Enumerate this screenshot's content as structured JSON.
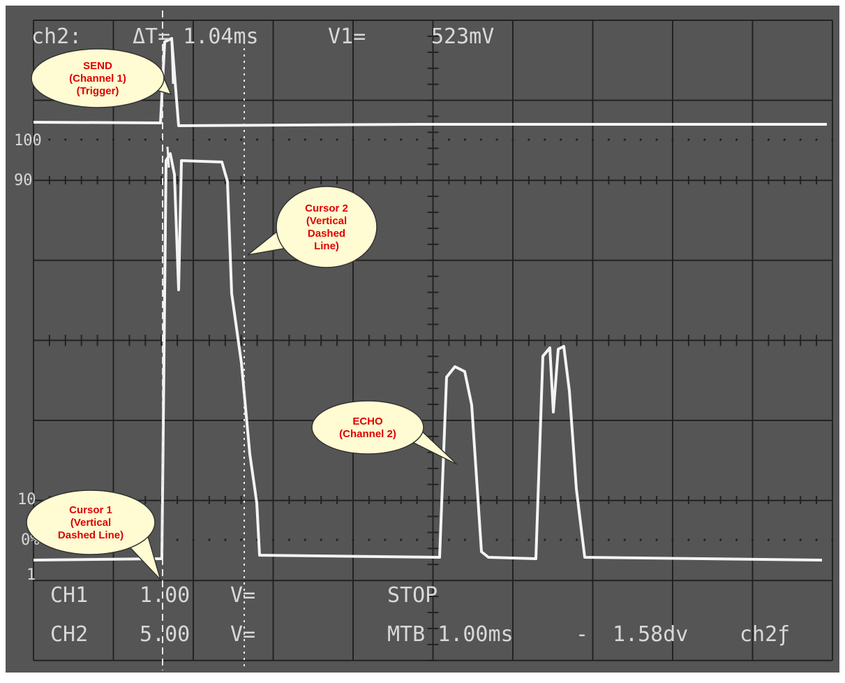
{
  "readout": {
    "channel": "ch2:",
    "delta_t": "ΔT= 1.04ms",
    "v1_label": "V1=",
    "v1": "523mV"
  },
  "scale_labels": [
    "100",
    "90",
    "10",
    "0%",
    "1"
  ],
  "status": {
    "ch1": {
      "name": "CH1",
      "volts": "1.00",
      "coupling": "V="
    },
    "ch2": {
      "name": "CH2",
      "volts": "5.00",
      "coupling": "V="
    },
    "state": "STOP",
    "timebase": "MTB 1.00ms",
    "dash": "-",
    "delay": "1.58dv",
    "trigger": "ch2ƒ"
  },
  "callouts": [
    {
      "lines": [
        "SEND",
        "(Channel 1)",
        "(Trigger)"
      ]
    },
    {
      "lines": [
        "Cursor 2",
        "(Vertical",
        "Dashed",
        "Line)"
      ]
    },
    {
      "lines": [
        "ECHO",
        "(Channel 2)"
      ]
    },
    {
      "lines": [
        "Cursor 1",
        "(Vertical",
        "Dashed Line)"
      ]
    }
  ]
}
